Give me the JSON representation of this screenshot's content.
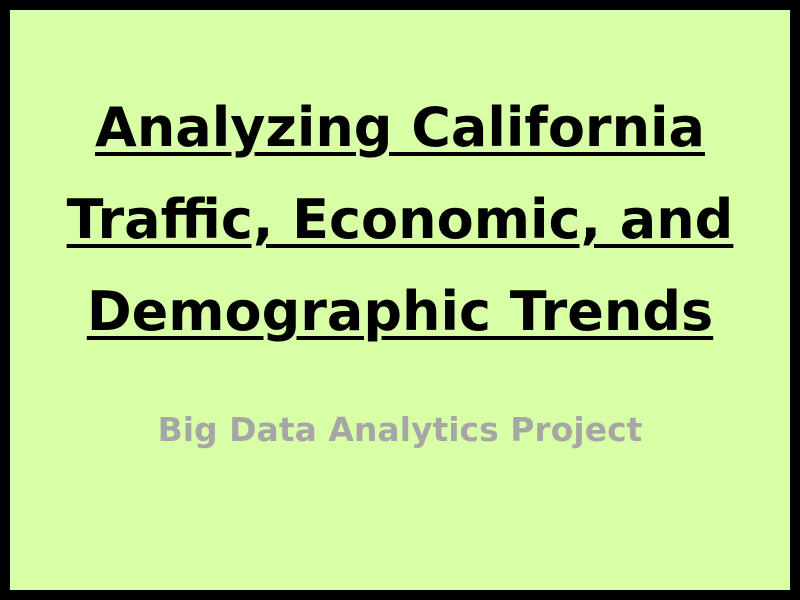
{
  "slide": {
    "title_lines": [
      "Analyzing California",
      "Traffic, Economic, and",
      "Demographic Trends"
    ],
    "subtitle": "Big Data Analytics Project",
    "colors": {
      "background": "#d9ffa6",
      "border": "#000000",
      "title": "#000000",
      "subtitle": "#a6a6a6"
    }
  }
}
